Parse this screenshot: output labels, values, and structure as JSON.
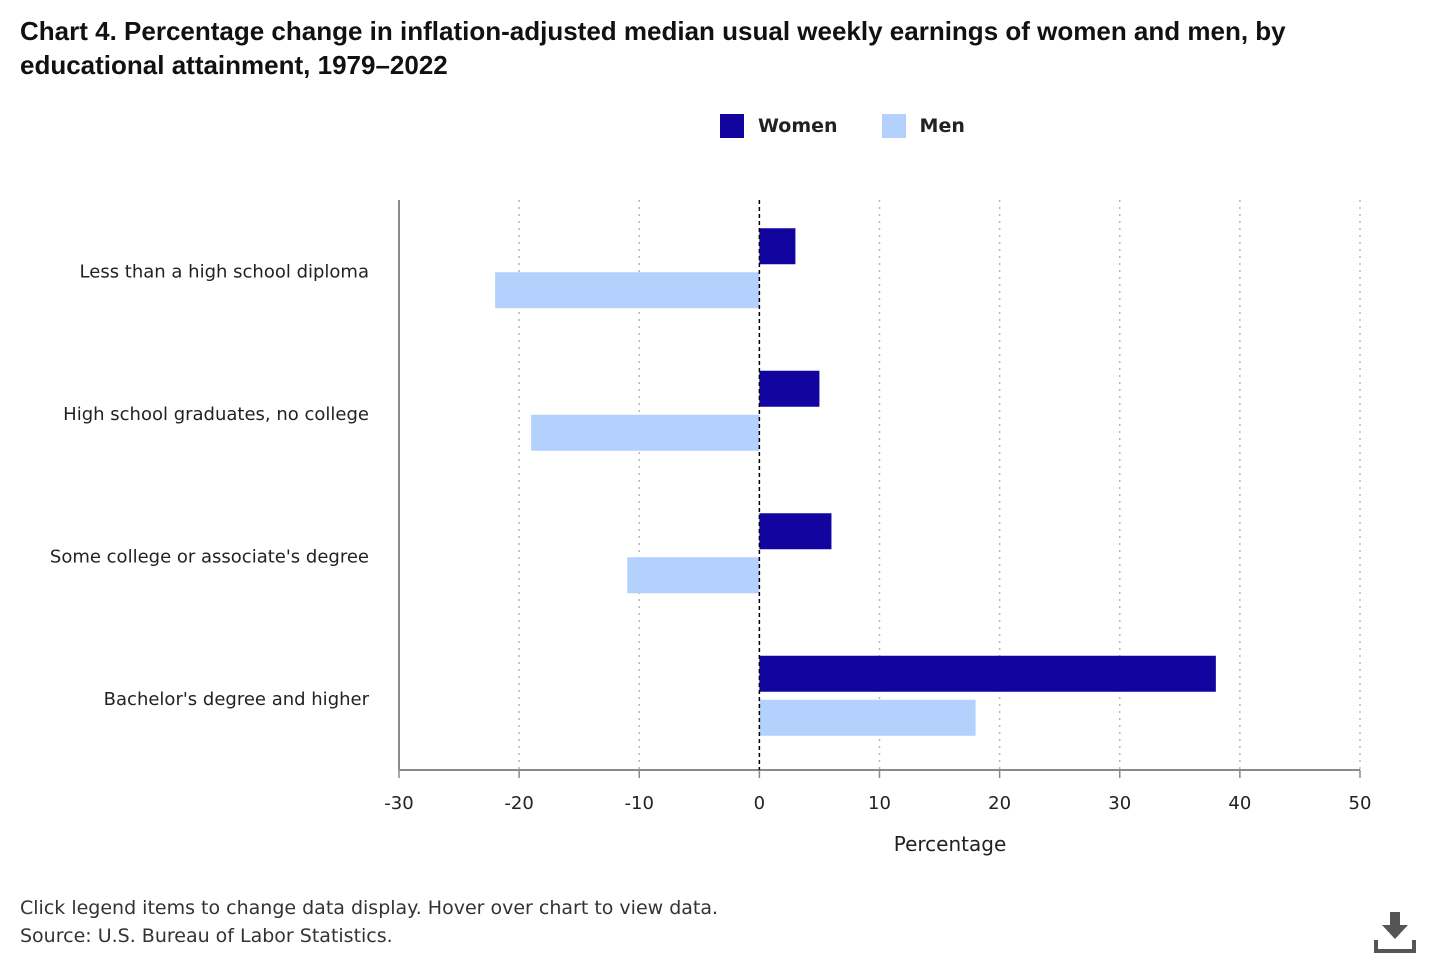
{
  "colors": {
    "women": "#11049f",
    "men": "#b3d1fc",
    "grid": "#b8b8b8",
    "axis": "#8a8a8a",
    "zero_line": "#000000",
    "icon": "#555555"
  },
  "legend_items": [
    {
      "label": "Women",
      "color_key": "women"
    },
    {
      "label": "Men",
      "color_key": "men"
    }
  ],
  "footer": {
    "note": "Click legend items to change data display. Hover over chart to view data.",
    "source": "Source: U.S. Bureau of Labor Statistics."
  },
  "icons": {
    "download": "download-icon"
  },
  "chart_data": {
    "type": "bar",
    "orientation": "horizontal",
    "title": "Chart 4. Percentage change in inflation-adjusted median usual weekly earnings of women and men, by educational attainment, 1979–2022",
    "xlabel": "Percentage",
    "ylabel": "",
    "xlim": [
      -30,
      50
    ],
    "xticks": [
      -30,
      -20,
      -10,
      0,
      10,
      20,
      30,
      40,
      50
    ],
    "categories": [
      "Less than a high school diploma",
      "High school graduates, no college",
      "Some college or associate's degree",
      "Bachelor's degree and higher"
    ],
    "series": [
      {
        "name": "Women",
        "values": [
          3,
          5,
          6,
          38
        ]
      },
      {
        "name": "Men",
        "values": [
          -22,
          -19,
          -11,
          18
        ]
      }
    ],
    "grid": "vertical dotted",
    "legend_position": "top-center"
  }
}
